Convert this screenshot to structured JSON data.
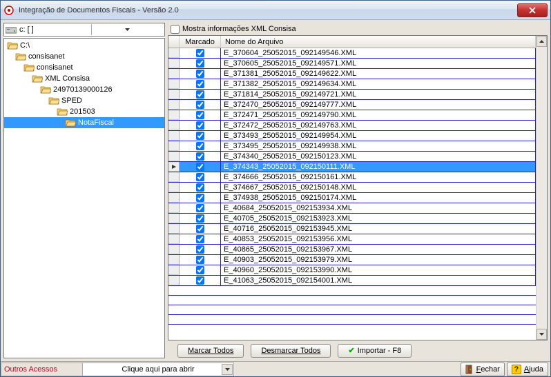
{
  "window": {
    "title": "Integração de Documentos Fiscais  - Versão 2.0"
  },
  "drive": {
    "label": "c: [ ]"
  },
  "tree": [
    {
      "label": "C:\\",
      "indent": 0,
      "open": true,
      "selected": false
    },
    {
      "label": "consisanet",
      "indent": 1,
      "open": true,
      "selected": false
    },
    {
      "label": "consisanet",
      "indent": 2,
      "open": true,
      "selected": false
    },
    {
      "label": "XML Consisa",
      "indent": 3,
      "open": true,
      "selected": false
    },
    {
      "label": "24970139000126",
      "indent": 4,
      "open": true,
      "selected": false
    },
    {
      "label": "SPED",
      "indent": 5,
      "open": true,
      "selected": false
    },
    {
      "label": "201503",
      "indent": 6,
      "open": true,
      "selected": false
    },
    {
      "label": "NotaFiscal",
      "indent": 7,
      "open": true,
      "selected": true
    }
  ],
  "options": {
    "show_xml_label": "Mostra informações XML Consisa",
    "show_xml_checked": false
  },
  "grid": {
    "columns": {
      "marcado": "Marcado",
      "nome": "Nome do Arquivo"
    },
    "rows": [
      {
        "marcado": true,
        "nome": "E_370604_25052015_092149546.XML",
        "current": false
      },
      {
        "marcado": true,
        "nome": "E_370605_25052015_092149571.XML",
        "current": false
      },
      {
        "marcado": true,
        "nome": "E_371381_25052015_092149622.XML",
        "current": false
      },
      {
        "marcado": true,
        "nome": "E_371382_25052015_092149634.XML",
        "current": false
      },
      {
        "marcado": true,
        "nome": "E_371814_25052015_092149721.XML",
        "current": false
      },
      {
        "marcado": true,
        "nome": "E_372470_25052015_092149777.XML",
        "current": false
      },
      {
        "marcado": true,
        "nome": "E_372471_25052015_092149790.XML",
        "current": false
      },
      {
        "marcado": true,
        "nome": "E_372472_25052015_092149763.XML",
        "current": false
      },
      {
        "marcado": true,
        "nome": "E_373493_25052015_092149954.XML",
        "current": false
      },
      {
        "marcado": true,
        "nome": "E_373495_25052015_092149938.XML",
        "current": false
      },
      {
        "marcado": true,
        "nome": "E_374340_25052015_092150123.XML",
        "current": false
      },
      {
        "marcado": true,
        "nome": "E_374343_25052015_092150111.XML",
        "current": true
      },
      {
        "marcado": true,
        "nome": "E_374666_25052015_092150161.XML",
        "current": false
      },
      {
        "marcado": true,
        "nome": "E_374667_25052015_092150148.XML",
        "current": false
      },
      {
        "marcado": true,
        "nome": "E_374938_25052015_092150174.XML",
        "current": false
      },
      {
        "marcado": true,
        "nome": "E_40684_25052015_092153934.XML",
        "current": false
      },
      {
        "marcado": true,
        "nome": "E_40705_25052015_092153923.XML",
        "current": false
      },
      {
        "marcado": true,
        "nome": "E_40716_25052015_092153945.XML",
        "current": false
      },
      {
        "marcado": true,
        "nome": "E_40853_25052015_092153956.XML",
        "current": false
      },
      {
        "marcado": true,
        "nome": "E_40865_25052015_092153967.XML",
        "current": false
      },
      {
        "marcado": true,
        "nome": "E_40903_25052015_092153979.XML",
        "current": false
      },
      {
        "marcado": true,
        "nome": "E_40960_25052015_092153990.XML",
        "current": false
      },
      {
        "marcado": true,
        "nome": "E_41063_25052015_092154001.XML",
        "current": false
      }
    ]
  },
  "buttons": {
    "marcar": "Marcar Todos",
    "desmarcar": "Desmarcar Todos",
    "importar": "Importar - F8"
  },
  "statusbar": {
    "outros": "Outros Acessos",
    "dropdown": "Clique aqui para abrir",
    "fechar": "Fechar",
    "ajuda": "Ajuda"
  },
  "colors": {
    "selection": "#3399ff",
    "grid_border": "#2020cc",
    "panel_bg": "#e8e4dc"
  }
}
